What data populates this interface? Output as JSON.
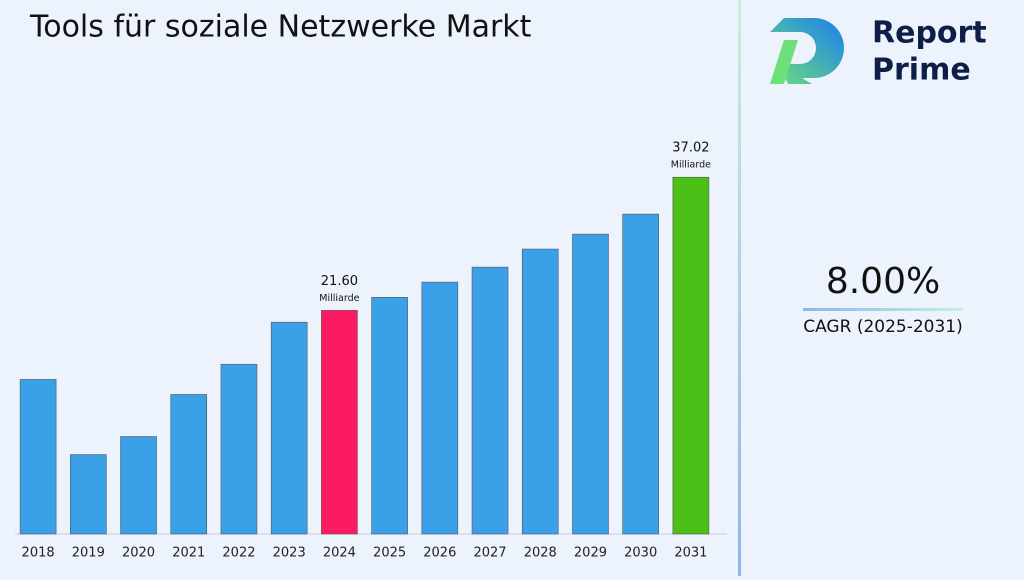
{
  "chart_data": {
    "type": "bar",
    "title": "Tools für soziale Netzwerke Markt",
    "categories": [
      "2018",
      "2019",
      "2020",
      "2021",
      "2022",
      "2023",
      "2024",
      "2025",
      "2026",
      "2027",
      "2028",
      "2029",
      "2030",
      "2031"
    ],
    "values": [
      13.6,
      4.9,
      6.99,
      11.86,
      15.36,
      20.23,
      21.6,
      23.11,
      24.87,
      26.61,
      28.7,
      30.43,
      32.75,
      37.02
    ],
    "value_labels": [
      null,
      null,
      null,
      null,
      null,
      null,
      "21.60",
      null,
      null,
      null,
      null,
      null,
      null,
      "37.02"
    ],
    "value_unit": "Milliarde",
    "colors": [
      "#3aa0e8",
      "#3aa0e8",
      "#3aa0e8",
      "#3aa0e8",
      "#3aa0e8",
      "#3aa0e8",
      "#fc1a62",
      "#3aa0e8",
      "#3aa0e8",
      "#3aa0e8",
      "#3aa0e8",
      "#3aa0e8",
      "#3aa0e8",
      "#4cc016"
    ],
    "ylim": [
      -4.3,
      41.1
    ]
  },
  "cagr": {
    "value": "8.00%",
    "label": "CAGR (2025-2031)"
  },
  "logo": {
    "line1": "Report",
    "line2": "Prime"
  }
}
